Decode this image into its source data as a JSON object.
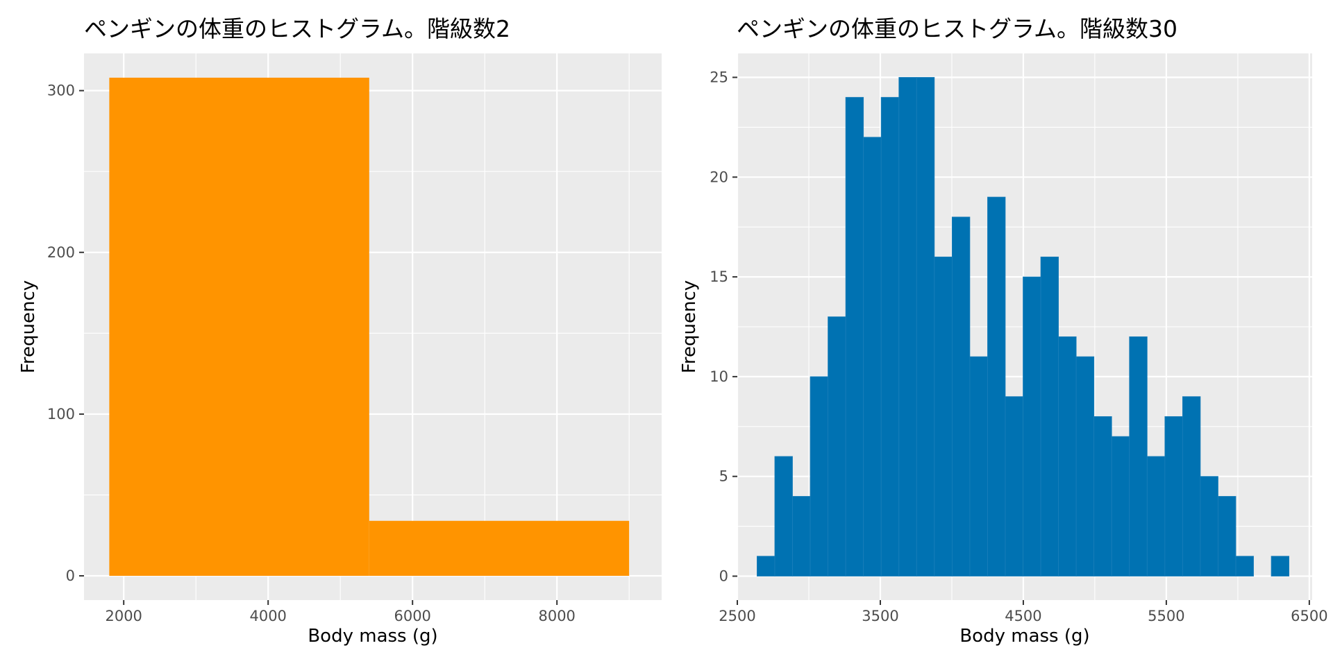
{
  "chart_data": [
    {
      "type": "bar",
      "title": "ペンギンの体重のヒストグラム。階級数2",
      "xlabel": "Body mass (g)",
      "ylabel": "Frequency",
      "fill_color": "#FF9400",
      "xlim": [
        1450,
        9450
      ],
      "ylim": [
        -15,
        323
      ],
      "xticks": [
        2000,
        4000,
        6000,
        8000
      ],
      "yticks": [
        0,
        100,
        200,
        300
      ],
      "bins": [
        {
          "x0": 1800,
          "x1": 5400,
          "count": 308
        },
        {
          "x0": 5400,
          "x1": 9000,
          "count": 34
        }
      ],
      "grid": true,
      "legend": "none"
    },
    {
      "type": "bar",
      "title": "ペンギンの体重のヒストグラム。階級数30",
      "xlabel": "Body mass (g)",
      "ylabel": "Frequency",
      "fill_color": "#0072B2",
      "xlim": [
        2500,
        6520
      ],
      "ylim": [
        -1.2,
        26.2
      ],
      "xticks": [
        2500,
        3500,
        4500,
        5500,
        6500
      ],
      "yticks": [
        0,
        5,
        10,
        15,
        20,
        25
      ],
      "bin_width": 124,
      "bin_start": 2638,
      "counts": [
        1,
        6,
        4,
        10,
        13,
        24,
        22,
        24,
        25,
        25,
        16,
        18,
        11,
        19,
        9,
        15,
        16,
        12,
        11,
        8,
        7,
        12,
        6,
        8,
        9,
        5,
        4,
        1,
        0,
        1
      ],
      "grid": true,
      "legend": "none"
    }
  ]
}
